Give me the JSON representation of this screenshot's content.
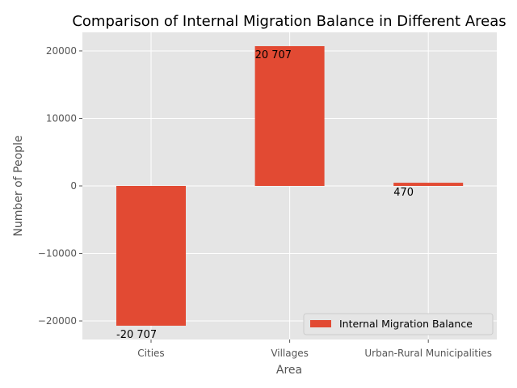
{
  "chart_data": {
    "type": "bar",
    "title": "Comparison of Internal Migration Balance in Different Areas",
    "xlabel": "Area",
    "ylabel": "Number of People",
    "categories": [
      "Cities",
      "Villages",
      "Urban-Rural Municipalities"
    ],
    "series": [
      {
        "name": "Internal Migration Balance",
        "values": [
          -20707,
          20707,
          470
        ],
        "labels": [
          "-20 707",
          "20 707",
          "470"
        ],
        "color": "#E24A33"
      }
    ],
    "ylim": [
      -22750,
      22750
    ],
    "yticks": [
      -20000,
      -10000,
      0,
      10000,
      20000
    ],
    "ytick_labels": [
      "−20000",
      "−10000",
      "0",
      "10000",
      "20000"
    ],
    "grid": true,
    "legend_position": "lower-right",
    "background_color": "#E5E5E5"
  }
}
